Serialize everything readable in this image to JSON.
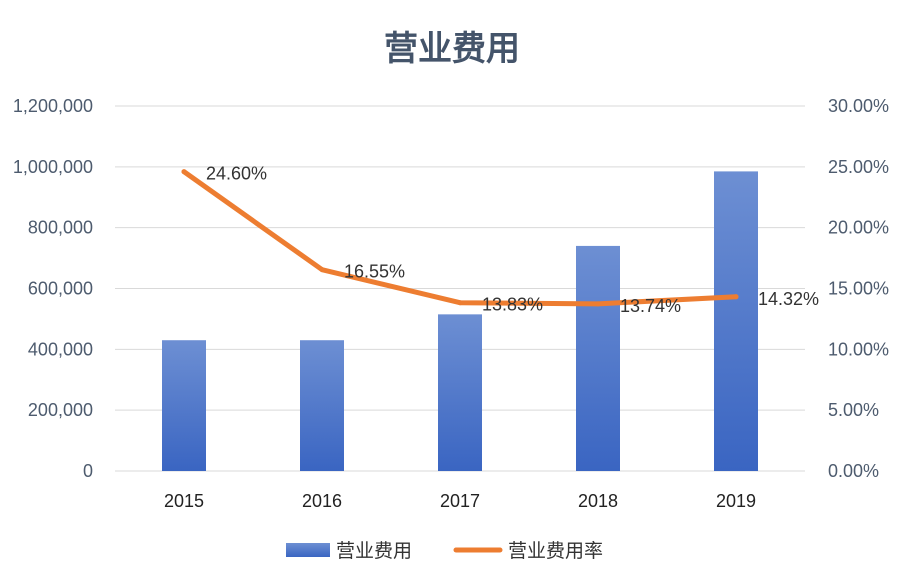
{
  "chart_data": {
    "type": "bar",
    "title": "营业费用",
    "categories": [
      "2015",
      "2016",
      "2017",
      "2018",
      "2019"
    ],
    "series": [
      {
        "name": "营业费用",
        "type": "bar",
        "axis": "left",
        "values": [
          430000,
          430000,
          515000,
          740000,
          985000
        ]
      },
      {
        "name": "营业费用率",
        "type": "line",
        "axis": "right",
        "values": [
          24.6,
          16.55,
          13.83,
          13.74,
          14.32
        ],
        "labels": [
          "24.60%",
          "16.55%",
          "13.83%",
          "13.74%",
          "14.32%"
        ]
      }
    ],
    "ylim": [
      0,
      1200000
    ],
    "y2lim": [
      0,
      30
    ],
    "yticks": [
      "0",
      "200,000",
      "400,000",
      "600,000",
      "800,000",
      "1,000,000",
      "1,200,000"
    ],
    "y2ticks": [
      "0.00%",
      "5.00%",
      "10.00%",
      "15.00%",
      "20.00%",
      "25.00%",
      "30.00%"
    ],
    "grid": true,
    "legend_position": "bottom",
    "colors": {
      "bar_top": "#6d8fd3",
      "bar_bottom": "#3a65c2",
      "line": "#ed7d31",
      "grid": "#d9d9d9"
    }
  }
}
